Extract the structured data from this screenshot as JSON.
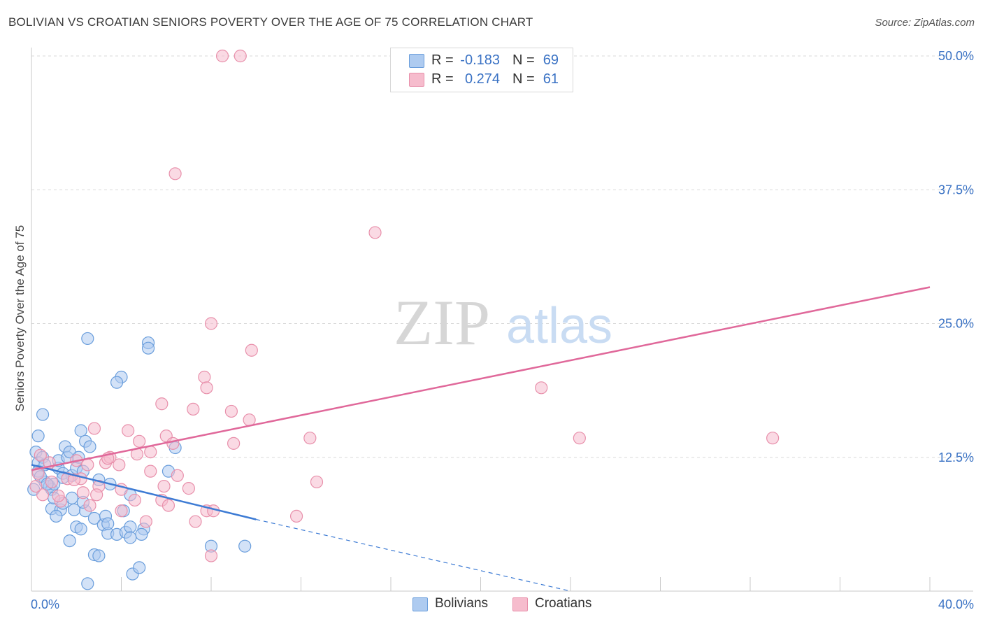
{
  "title": "BOLIVIAN VS CROATIAN SENIORS POVERTY OVER THE AGE OF 75 CORRELATION CHART",
  "source": "Source: ZipAtlas.com",
  "watermark": {
    "zip": "ZIP",
    "atlas": "atlas"
  },
  "legend_top": [
    {
      "r_label": "R =",
      "r_value": "-0.183",
      "n_label": "N =",
      "n_value": "69"
    },
    {
      "r_label": "R =",
      "r_value": "0.274",
      "n_label": "N =",
      "n_value": "61"
    }
  ],
  "legend_bottom": [
    "Bolivians",
    "Croatians"
  ],
  "colors": {
    "bolivians_fill": "#aecbf0",
    "bolivians_stroke": "#6a9edc",
    "bolivians_line": "#3d7bd4",
    "croatians_fill": "#f6bccd",
    "croatians_stroke": "#e890ab",
    "croatians_line": "#e0689a",
    "axis_text": "#3a72c4",
    "grid": "#d9d9d9"
  },
  "chart_data": {
    "type": "scatter",
    "title": "BOLIVIAN VS CROATIAN SENIORS POVERTY OVER THE AGE OF 75 CORRELATION CHART",
    "xlabel": "",
    "ylabel": "Seniors Poverty Over the Age of 75",
    "xlim": [
      0,
      40
    ],
    "ylim": [
      0,
      50
    ],
    "x_tick_labels": [
      "0.0%",
      "40.0%"
    ],
    "y_ticks": [
      12.5,
      25.0,
      37.5,
      50.0
    ],
    "y_tick_labels": [
      "12.5%",
      "25.0%",
      "37.5%",
      "50.0%"
    ],
    "grid": true,
    "legend_position": "top-center",
    "series": [
      {
        "name": "Bolivians",
        "R": -0.183,
        "N": 69,
        "trend": {
          "x0": 0,
          "y0": 11.8,
          "x1": 10,
          "y1": 6.7,
          "dash_to_x": 24,
          "dash_to_y": 0
        },
        "points": [
          [
            0.2,
            13.0
          ],
          [
            0.3,
            12.0
          ],
          [
            0.3,
            14.5
          ],
          [
            0.5,
            16.5
          ],
          [
            0.5,
            12.5
          ],
          [
            0.3,
            11.2
          ],
          [
            0.6,
            10.2
          ],
          [
            0.8,
            9.8
          ],
          [
            0.9,
            9.5
          ],
          [
            1.0,
            10.0
          ],
          [
            1.2,
            11.5
          ],
          [
            1.2,
            12.2
          ],
          [
            1.4,
            11.0
          ],
          [
            1.5,
            13.5
          ],
          [
            1.6,
            12.5
          ],
          [
            1.7,
            13.0
          ],
          [
            1.8,
            10.8
          ],
          [
            2.0,
            11.5
          ],
          [
            2.1,
            12.5
          ],
          [
            2.3,
            11.2
          ],
          [
            2.2,
            15.0
          ],
          [
            2.4,
            14.0
          ],
          [
            2.6,
            13.5
          ],
          [
            1.4,
            10.6
          ],
          [
            0.9,
            7.7
          ],
          [
            1.3,
            7.6
          ],
          [
            1.4,
            8.2
          ],
          [
            1.9,
            7.6
          ],
          [
            2.4,
            7.5
          ],
          [
            2.8,
            6.8
          ],
          [
            3.2,
            6.2
          ],
          [
            3.4,
            5.4
          ],
          [
            3.8,
            5.3
          ],
          [
            4.2,
            5.5
          ],
          [
            4.4,
            6.0
          ],
          [
            2.0,
            6.0
          ],
          [
            2.2,
            5.8
          ],
          [
            1.7,
            4.7
          ],
          [
            2.8,
            3.4
          ],
          [
            3.0,
            3.3
          ],
          [
            2.5,
            0.7
          ],
          [
            4.5,
            1.6
          ],
          [
            4.8,
            2.2
          ],
          [
            3.0,
            10.4
          ],
          [
            3.5,
            10.0
          ],
          [
            4.4,
            9.0
          ],
          [
            4.1,
            7.5
          ],
          [
            5.2,
            23.2
          ],
          [
            5.2,
            22.7
          ],
          [
            4.0,
            20.0
          ],
          [
            3.8,
            19.5
          ],
          [
            6.4,
            13.4
          ],
          [
            6.1,
            11.2
          ],
          [
            8.0,
            4.2
          ],
          [
            9.5,
            4.2
          ],
          [
            2.5,
            23.6
          ],
          [
            0.1,
            9.5
          ],
          [
            0.4,
            10.7
          ],
          [
            0.6,
            11.8
          ],
          [
            0.7,
            10.0
          ],
          [
            1.0,
            8.7
          ],
          [
            1.1,
            7.0
          ],
          [
            1.8,
            8.7
          ],
          [
            2.3,
            8.3
          ],
          [
            3.3,
            7.0
          ],
          [
            5.0,
            5.8
          ],
          [
            4.9,
            5.3
          ],
          [
            4.4,
            5.0
          ],
          [
            3.4,
            6.3
          ]
        ]
      },
      {
        "name": "Croatians",
        "R": 0.274,
        "N": 61,
        "trend": {
          "x0": 0,
          "y0": 11.3,
          "x1": 40,
          "y1": 28.4
        },
        "points": [
          [
            8.5,
            50.0
          ],
          [
            9.3,
            50.0
          ],
          [
            6.4,
            39.0
          ],
          [
            15.3,
            33.5
          ],
          [
            8.0,
            25.0
          ],
          [
            9.8,
            22.5
          ],
          [
            7.7,
            20.0
          ],
          [
            7.8,
            19.0
          ],
          [
            22.7,
            19.0
          ],
          [
            5.8,
            17.5
          ],
          [
            7.2,
            17.0
          ],
          [
            8.9,
            16.8
          ],
          [
            9.7,
            16.0
          ],
          [
            2.8,
            15.2
          ],
          [
            4.3,
            15.0
          ],
          [
            6.0,
            14.5
          ],
          [
            4.8,
            14.0
          ],
          [
            6.3,
            13.8
          ],
          [
            9.0,
            13.8
          ],
          [
            12.4,
            14.3
          ],
          [
            24.4,
            14.3
          ],
          [
            33.0,
            14.3
          ],
          [
            0.4,
            12.7
          ],
          [
            0.8,
            12.0
          ],
          [
            2.0,
            12.2
          ],
          [
            2.5,
            11.8
          ],
          [
            3.3,
            12.0
          ],
          [
            3.5,
            12.5
          ],
          [
            3.9,
            11.8
          ],
          [
            4.7,
            12.8
          ],
          [
            5.3,
            13.0
          ],
          [
            0.3,
            11.0
          ],
          [
            0.9,
            10.2
          ],
          [
            1.6,
            10.5
          ],
          [
            2.2,
            10.5
          ],
          [
            2.3,
            9.2
          ],
          [
            3.0,
            9.8
          ],
          [
            4.0,
            9.5
          ],
          [
            5.3,
            11.2
          ],
          [
            5.9,
            9.8
          ],
          [
            6.5,
            10.8
          ],
          [
            7.0,
            9.6
          ],
          [
            12.7,
            10.2
          ],
          [
            0.5,
            9.0
          ],
          [
            1.3,
            8.4
          ],
          [
            2.6,
            8.0
          ],
          [
            2.9,
            9.0
          ],
          [
            4.0,
            7.5
          ],
          [
            4.6,
            8.5
          ],
          [
            5.8,
            8.5
          ],
          [
            6.1,
            8.0
          ],
          [
            7.3,
            6.5
          ],
          [
            7.8,
            7.5
          ],
          [
            8.1,
            7.5
          ],
          [
            11.8,
            7.0
          ],
          [
            5.1,
            6.5
          ],
          [
            8.0,
            3.3
          ],
          [
            0.2,
            9.8
          ],
          [
            1.2,
            8.9
          ],
          [
            1.9,
            10.4
          ],
          [
            3.4,
            12.4
          ]
        ]
      }
    ]
  }
}
